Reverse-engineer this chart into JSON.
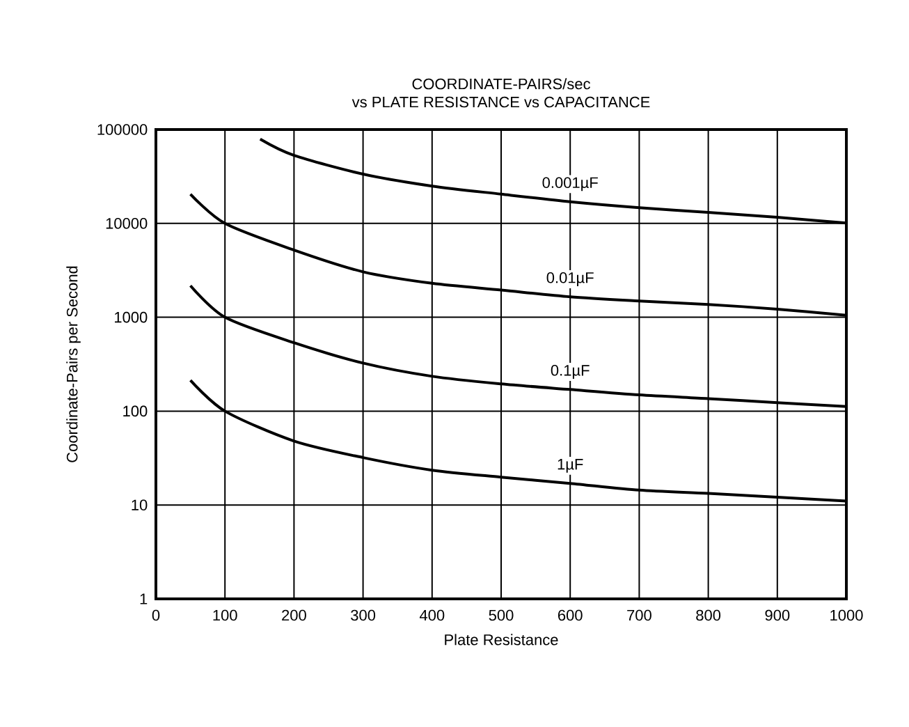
{
  "chart_data": {
    "type": "line",
    "title": "COORDINATE-PAIRS/sec",
    "subtitle": "vs PLATE RESISTANCE vs CAPACITANCE",
    "xlabel": "Plate Resistance",
    "ylabel": "Coordinate-Pairs per Second",
    "xlim": [
      0,
      1000
    ],
    "ylim": [
      1,
      100000
    ],
    "xticks": [
      0,
      100,
      200,
      300,
      400,
      500,
      600,
      700,
      800,
      900,
      1000
    ],
    "yticks": [
      1,
      10,
      100,
      1000,
      10000,
      100000
    ],
    "log": "y",
    "grid": true,
    "marker": "none",
    "line_style": "solid",
    "series": [
      {
        "name": "0.001µF",
        "color": "#000000",
        "x": [
          151,
          200,
          300,
          400,
          500,
          600,
          700,
          800,
          900,
          1000
        ],
        "values": [
          79000,
          53000,
          33500,
          25000,
          20500,
          17000,
          14700,
          13100,
          11600,
          10100
        ]
      },
      {
        "name": "0.01µF",
        "color": "#000000",
        "x": [
          50,
          100,
          200,
          300,
          400,
          500,
          600,
          700,
          800,
          900,
          1000
        ],
        "values": [
          20500,
          10000,
          5200,
          3050,
          2300,
          1950,
          1650,
          1490,
          1370,
          1220,
          1050
        ]
      },
      {
        "name": "0.1µF",
        "color": "#000000",
        "x": [
          50,
          100,
          200,
          300,
          400,
          500,
          600,
          700,
          800,
          900,
          1000
        ],
        "values": [
          2170,
          1000,
          535,
          325,
          235,
          195,
          170,
          149,
          136,
          123,
          112
        ]
      },
      {
        "name": "1µF",
        "color": "#000000",
        "x": [
          50,
          100,
          200,
          300,
          400,
          500,
          600,
          700,
          800,
          900,
          1000
        ],
        "values": [
          213,
          100,
          48,
          32,
          23.5,
          19.8,
          17,
          14.4,
          13.3,
          12.1,
          11
        ]
      }
    ]
  }
}
